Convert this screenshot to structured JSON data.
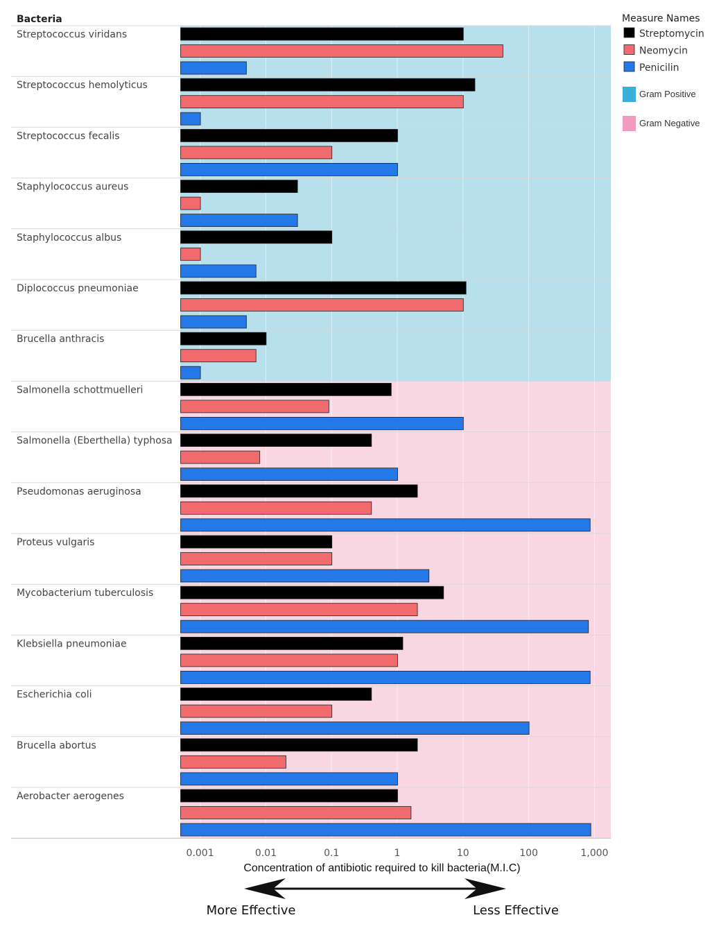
{
  "chart_data": {
    "type": "bar",
    "orientation": "horizontal",
    "row_header": "Bacteria",
    "categories": [
      "Streptococcus viridans",
      "Streptococcus hemolyticus",
      "Streptococcus fecalis",
      "Staphylococcus aureus",
      "Staphylococcus albus",
      "Diplococcus pneumoniae",
      "Brucella anthracis",
      "Salmonella schottmuelleri",
      "Salmonella (Eberthella) typhosa",
      "Pseudomonas aeruginosa",
      "Proteus vulgaris",
      "Mycobacterium tuberculosis",
      "Klebsiella pneumoniae",
      "Escherichia coli",
      "Brucella abortus",
      "Aerobacter aerogenes"
    ],
    "groups": [
      {
        "name": "Gram Positive",
        "count": 7,
        "color": "#b7dfec"
      },
      {
        "name": "Gram Negative",
        "count": 9,
        "color": "#f8d7e3"
      }
    ],
    "series": [
      {
        "name": "Streptomycin",
        "color": "#000000",
        "values": [
          10,
          15,
          1,
          0.03,
          0.1,
          11,
          0.01,
          0.8,
          0.4,
          2,
          0.1,
          5,
          1.2,
          0.4,
          2,
          1
        ]
      },
      {
        "name": "Neomycin",
        "color": "#f06a6e",
        "values": [
          40,
          10,
          0.1,
          0.001,
          0.001,
          10,
          0.007,
          0.09,
          0.008,
          0.4,
          0.1,
          2,
          1,
          0.1,
          0.02,
          1.6
        ]
      },
      {
        "name": "Penicilin",
        "color": "#2478e8",
        "values": [
          0.005,
          0.001,
          1,
          0.03,
          0.007,
          0.005,
          0.001,
          10,
          1,
          850,
          3,
          800,
          850,
          100,
          1,
          870
        ]
      }
    ],
    "x_scale": "log",
    "xlim": [
      0.0005,
      1000
    ],
    "xticks": [
      "0.001",
      "0.01",
      "0.1",
      "1",
      "10",
      "100",
      "1,000"
    ],
    "xtick_values": [
      0.001,
      0.01,
      0.1,
      1,
      10,
      100,
      1000
    ],
    "xlabel": "Concentration of antibiotic required to kill  bacteria(M.I.C)",
    "legend_title": "Measure Names",
    "legend_position": "top-right",
    "grid": true
  },
  "annotations": {
    "left": "More Effective",
    "right": "Less Effective"
  }
}
